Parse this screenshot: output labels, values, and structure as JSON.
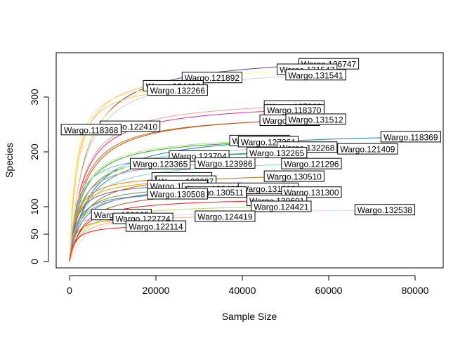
{
  "chart_data": {
    "type": "line",
    "title": "",
    "xlabel": "Sample Size",
    "ylabel": "Species",
    "xlim": [
      0,
      85000
    ],
    "ylim": [
      0,
      370
    ],
    "x_ticks": [
      "0",
      "20000",
      "40000",
      "60000",
      "80000"
    ],
    "y_ticks": [
      "0",
      "50",
      "100",
      "200",
      "300"
    ],
    "x_tick_values": [
      0,
      20000,
      40000,
      60000,
      80000
    ],
    "y_tick_values": [
      0,
      50,
      100,
      200,
      300
    ],
    "grid": false,
    "series": [
      {
        "name": "Wargo.126747",
        "max_x": 60000,
        "max_y": 360,
        "color": "#6a3d9a",
        "label_x": 60000,
        "label_y": 360
      },
      {
        "name": "Wargo.131547",
        "max_x": 55000,
        "max_y": 350,
        "color": "#ffff99",
        "label_x": 55000,
        "label_y": 350
      },
      {
        "name": "Wargo.131541",
        "max_x": 57000,
        "max_y": 340,
        "color": "#d0d0d0",
        "label_x": 57000,
        "label_y": 340
      },
      {
        "name": "Wargo.121892",
        "max_x": 33000,
        "max_y": 335,
        "color": "#fdbf6f",
        "label_x": 33000,
        "label_y": 335
      },
      {
        "name": "Wargo.124418",
        "max_x": 24000,
        "max_y": 320,
        "color": "#fee08b",
        "label_x": 24000,
        "label_y": 320
      },
      {
        "name": "Wargo.132266",
        "max_x": 25000,
        "max_y": 312,
        "color": "#fdbf6f",
        "label_x": 25000,
        "label_y": 312
      },
      {
        "name": "Wargo.127262",
        "max_x": 52000,
        "max_y": 283,
        "color": "#fb9a99",
        "label_x": 52000,
        "label_y": 283
      },
      {
        "name": "Wargo.118370",
        "max_x": 52000,
        "max_y": 276,
        "color": "#e7298a",
        "label_x": 52000,
        "label_y": 276
      },
      {
        "name": "Wargo.131510",
        "max_x": 51000,
        "max_y": 257,
        "color": "#d95f02",
        "label_x": 51000,
        "label_y": 257
      },
      {
        "name": "Wargo.131512",
        "max_x": 57000,
        "max_y": 259,
        "color": "#b15928",
        "label_x": 57000,
        "label_y": 259
      },
      {
        "name": "Wargo.122410",
        "max_x": 14000,
        "max_y": 246,
        "color": "#fff2ae",
        "label_x": 14000,
        "label_y": 246
      },
      {
        "name": "Wargo.118368",
        "max_x": 5000,
        "max_y": 240,
        "color": "#ffffb3",
        "label_x": 5000,
        "label_y": 240
      },
      {
        "name": "Wargo.118369",
        "max_x": 79000,
        "max_y": 227,
        "color": "#1f78b4",
        "label_x": 79000,
        "label_y": 227
      },
      {
        "name": "Wargo.122262",
        "max_x": 44000,
        "max_y": 220,
        "color": "#b2df8a",
        "label_x": 44000,
        "label_y": 220
      },
      {
        "name": "Wargo.127261",
        "max_x": 46000,
        "max_y": 218,
        "color": "#33a02c",
        "label_x": 46000,
        "label_y": 218
      },
      {
        "name": "Wargo.132268",
        "max_x": 55000,
        "max_y": 208,
        "color": "#a6cee3",
        "label_x": 55000,
        "label_y": 208
      },
      {
        "name": "Wargo.121409",
        "max_x": 69000,
        "max_y": 205,
        "color": "#1b9e77",
        "label_x": 69000,
        "label_y": 205
      },
      {
        "name": "Wargo.132265",
        "max_x": 48000,
        "max_y": 198,
        "color": "#66a61e",
        "label_x": 48000,
        "label_y": 198
      },
      {
        "name": "Wargo.123704",
        "max_x": 30000,
        "max_y": 192,
        "color": "#80b1d3",
        "label_x": 30000,
        "label_y": 192
      },
      {
        "name": "Wargo.123986",
        "max_x": 36000,
        "max_y": 179,
        "color": "#bc80bd",
        "label_x": 36000,
        "label_y": 179
      },
      {
        "name": "Wargo.121296",
        "max_x": 56000,
        "max_y": 178,
        "color": "#8dd3c7",
        "label_x": 56000,
        "label_y": 178
      },
      {
        "name": "Wargo.123365",
        "max_x": 21000,
        "max_y": 178,
        "color": "#ccebc5",
        "label_x": 21000,
        "label_y": 178
      },
      {
        "name": "Wargo.130510",
        "max_x": 52000,
        "max_y": 155,
        "color": "#a6761d",
        "label_x": 52000,
        "label_y": 155
      },
      {
        "name": "Wargo.132412",
        "max_x": 26000,
        "max_y": 152,
        "color": "#ff7f00",
        "label_x": 26000,
        "label_y": 152
      },
      {
        "name": "Wargo.122637",
        "max_x": 27000,
        "max_y": 146,
        "color": "#e6ab02",
        "label_x": 27000,
        "label_y": 146
      },
      {
        "name": "Wargo.123407",
        "max_x": 25000,
        "max_y": 138,
        "color": "#984ea3",
        "label_x": 25000,
        "label_y": 138
      },
      {
        "name": "Wargo.132409",
        "max_x": 33000,
        "max_y": 133,
        "color": "#4daf4a",
        "label_x": 33000,
        "label_y": 133
      },
      {
        "name": "Wargo.131302",
        "max_x": 46000,
        "max_y": 133,
        "color": "#377eb8",
        "label_x": 46000,
        "label_y": 133
      },
      {
        "name": "Wargo.130511",
        "max_x": 34000,
        "max_y": 126,
        "color": "#999999",
        "label_x": 34000,
        "label_y": 126
      },
      {
        "name": "Wargo.131300",
        "max_x": 56000,
        "max_y": 126,
        "color": "#a65628",
        "label_x": 56000,
        "label_y": 126
      },
      {
        "name": "Wargo.130508",
        "max_x": 25000,
        "max_y": 123,
        "color": "#7570b3",
        "label_x": 25000,
        "label_y": 123
      },
      {
        "name": "Wargo.130601",
        "max_x": 48000,
        "max_y": 111,
        "color": "#e31a1c",
        "label_x": 48000,
        "label_y": 111
      },
      {
        "name": "Wargo.124421",
        "max_x": 49000,
        "max_y": 100,
        "color": "#b3de69",
        "label_x": 49000,
        "label_y": 100
      },
      {
        "name": "Wargo.132538",
        "max_x": 73000,
        "max_y": 94,
        "color": "#fccde5",
        "label_x": 73000,
        "label_y": 94
      },
      {
        "name": "Wargo.124419",
        "max_x": 36000,
        "max_y": 82,
        "color": "#fdb462",
        "label_x": 36000,
        "label_y": 82
      },
      {
        "name": "Wargo.100865",
        "max_x": 12000,
        "max_y": 85,
        "color": "#cab2d6",
        "label_x": 12000,
        "label_y": 85
      },
      {
        "name": "Wargo.122724",
        "max_x": 17000,
        "max_y": 78,
        "color": "#ff7f00",
        "label_x": 17000,
        "label_y": 78
      },
      {
        "name": "Wargo.122114",
        "max_x": 20000,
        "max_y": 64,
        "color": "#e41a1c",
        "label_x": 20000,
        "label_y": 64
      }
    ]
  }
}
